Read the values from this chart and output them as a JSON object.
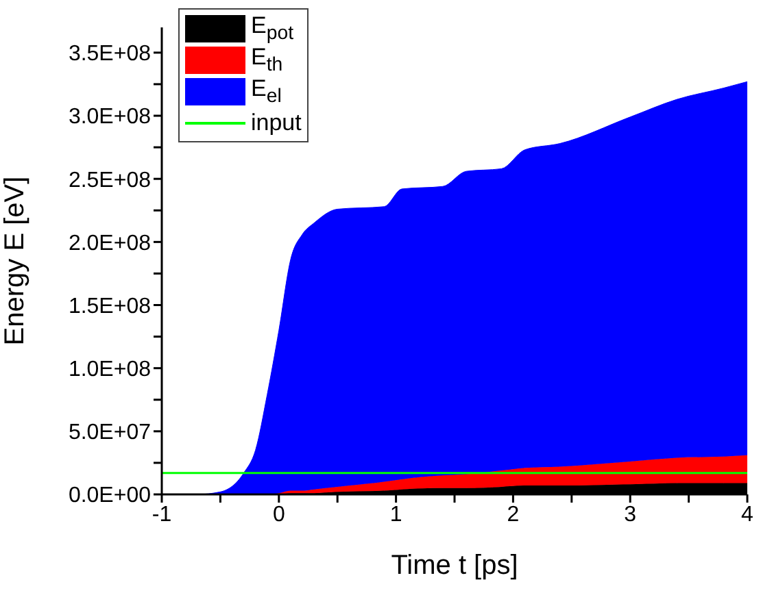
{
  "chart_data": {
    "type": "area",
    "stacked": true,
    "xlabel": "Time t [ps]",
    "ylabel": "Energy E [eV]",
    "x": [
      -1,
      -0.7,
      -0.5,
      -0.3,
      -0.2,
      -0.1,
      0,
      0.1,
      0.2,
      0.3,
      0.5,
      0.9,
      1.05,
      1.4,
      1.6,
      1.9,
      2.1,
      2.4,
      3,
      3.4,
      3.8,
      4
    ],
    "series": [
      {
        "name": "E$_{pot}$",
        "color": "#000000",
        "values": [
          0,
          0,
          0,
          0,
          0,
          0,
          0,
          1000000,
          1000000,
          1000000,
          2000000,
          3000000,
          4000000,
          5000000,
          5000000,
          6000000,
          7000000,
          7000000,
          8000000,
          9000000,
          9000000,
          9000000
        ]
      },
      {
        "name": "E$_{th}$",
        "color": "#ff0000",
        "values": [
          0,
          0,
          0,
          0,
          0,
          0,
          1000000,
          2000000,
          2000000,
          3000000,
          4000000,
          7000000,
          8000000,
          10000000,
          11000000,
          13000000,
          14000000,
          15000000,
          18000000,
          20000000,
          21000000,
          22000000
        ]
      },
      {
        "name": "E$_{el}$",
        "color": "#0000ff",
        "values": [
          0,
          0,
          2000000,
          17000000,
          35000000,
          79000000,
          129000000,
          183000000,
          203000000,
          211000000,
          220000000,
          218000000,
          230000000,
          229000000,
          240000000,
          239000000,
          252000000,
          256000000,
          273000000,
          284000000,
          292000000,
          296000000
        ]
      },
      {
        "name": "input",
        "type": "line",
        "color": "#00ff00",
        "x": [
          -1,
          4
        ],
        "values": [
          17000000,
          17000000
        ]
      }
    ],
    "xlim": [
      -1,
      4
    ],
    "xticks": [
      -1,
      {
        "value": -0.5,
        "label": null
      },
      0,
      {
        "value": 0.5,
        "label": null
      },
      1,
      {
        "value": 1.5,
        "label": null
      },
      2,
      {
        "value": 2.5,
        "label": null
      },
      3,
      {
        "value": 3.5,
        "label": null
      },
      4
    ],
    "ylim": [
      0,
      370000000
    ],
    "yticks": [
      {
        "value": 0,
        "label": "0.0E+00"
      },
      {
        "value": 25000000,
        "label": null
      },
      {
        "value": 50000000,
        "label": "5.0E+07"
      },
      {
        "value": 75000000,
        "label": null
      },
      {
        "value": 100000000,
        "label": "1.0E+08"
      },
      {
        "value": 125000000,
        "label": null
      },
      {
        "value": 150000000,
        "label": "1.5E+08"
      },
      {
        "value": 175000000,
        "label": null
      },
      {
        "value": 200000000,
        "label": "2.0E+08"
      },
      {
        "value": 225000000,
        "label": null
      },
      {
        "value": 250000000,
        "label": "2.5E+08"
      },
      {
        "value": 275000000,
        "label": null
      },
      {
        "value": 300000000,
        "label": "3.0E+08"
      },
      {
        "value": 325000000,
        "label": null
      },
      {
        "value": 350000000,
        "label": "3.5E+08"
      }
    ],
    "grid": false,
    "legend": "top left",
    "marker": "none",
    "line_style": "solid"
  }
}
